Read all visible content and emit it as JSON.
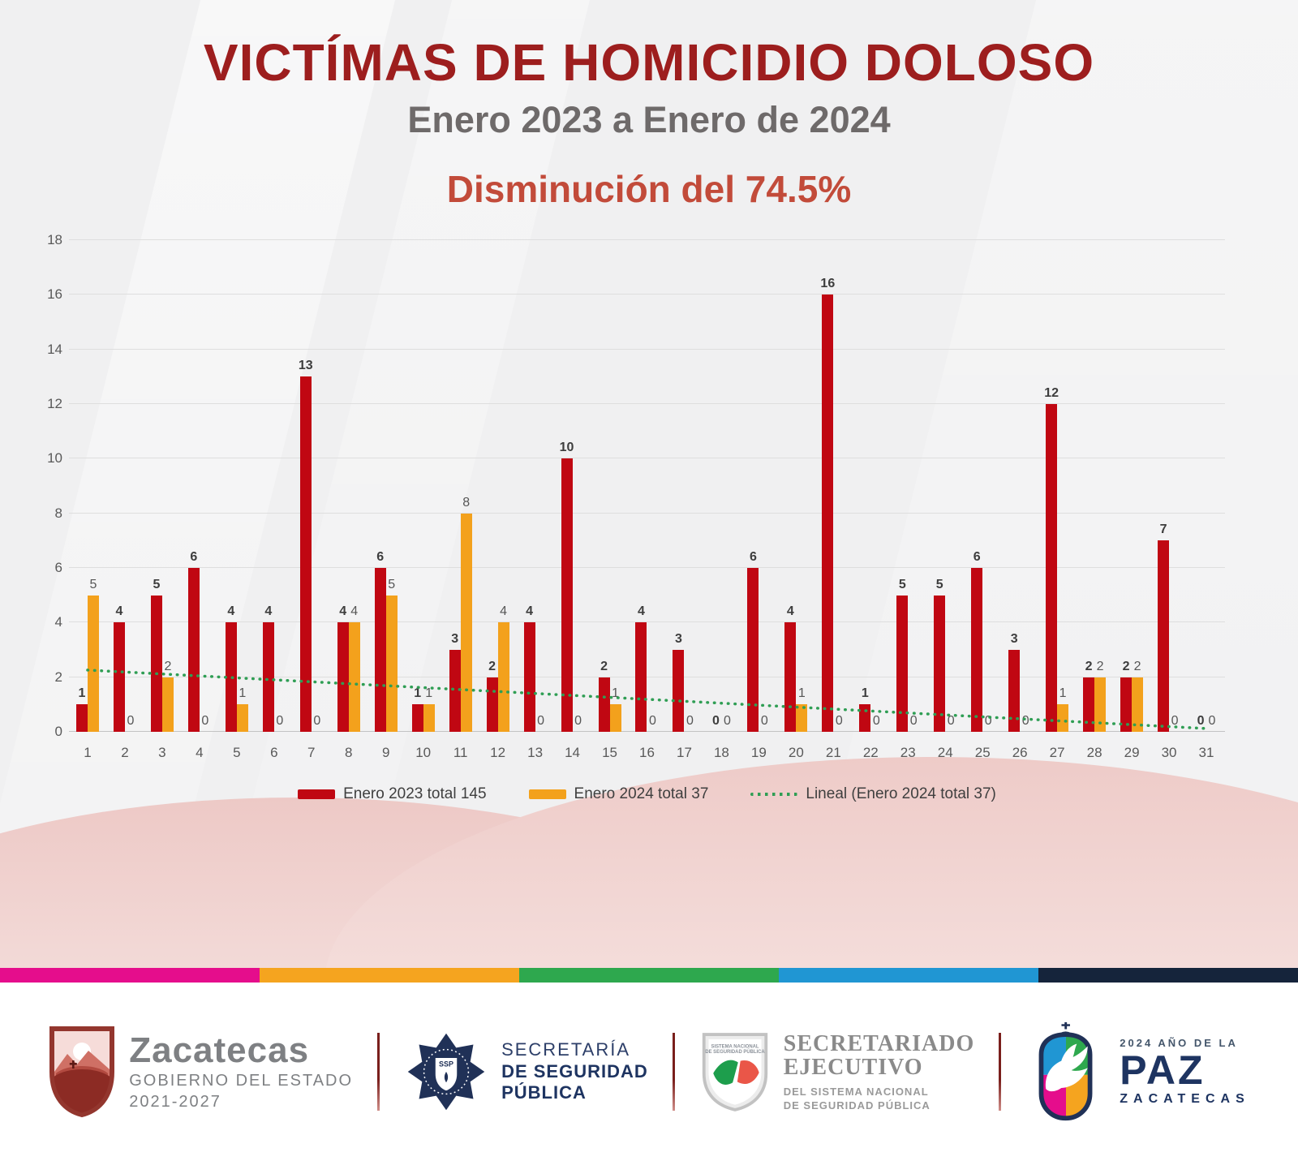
{
  "header": {
    "title": "VICTÍMAS DE HOMICIDIO DOLOSO",
    "subtitle": "Enero 2023 a Enero de 2024",
    "highlight": "Disminución del 74.5%"
  },
  "chart_data": {
    "type": "bar",
    "categories": [
      1,
      2,
      3,
      4,
      5,
      6,
      7,
      8,
      9,
      10,
      11,
      12,
      13,
      14,
      15,
      16,
      17,
      18,
      19,
      20,
      21,
      22,
      23,
      24,
      25,
      26,
      27,
      28,
      29,
      30,
      31
    ],
    "series": [
      {
        "name": "Enero 2023 total 145",
        "color": "#c00712",
        "values": [
          1,
          4,
          5,
          6,
          4,
          4,
          13,
          4,
          6,
          1,
          3,
          2,
          4,
          10,
          2,
          4,
          3,
          0,
          6,
          4,
          16,
          1,
          5,
          5,
          6,
          3,
          12,
          2,
          2,
          7,
          0
        ]
      },
      {
        "name": "Enero 2024 total 37",
        "color": "#f3a11c",
        "values": [
          5,
          0,
          2,
          0,
          1,
          0,
          0,
          4,
          5,
          1,
          8,
          4,
          0,
          0,
          1,
          0,
          0,
          0,
          0,
          1,
          0,
          0,
          0,
          0,
          0,
          0,
          1,
          2,
          2,
          0,
          0
        ]
      }
    ],
    "trendline": {
      "name": "Lineal (Enero 2024 total 37)",
      "color": "#2f9e54",
      "start_value": 2.26,
      "end_value": 0.12
    },
    "title": "VICTÍMAS DE HOMICIDIO DOLOSO",
    "xlabel": "",
    "ylabel": "",
    "ylim": [
      0,
      18
    ],
    "ytick_step": 2,
    "grid": true,
    "legend_position": "bottom"
  },
  "footer": {
    "stripe_colors": [
      "#e50d8c",
      "#f5a41f",
      "#2ea84e",
      "#2096d3",
      "#15243b"
    ],
    "logos": {
      "zacatecas": {
        "name": "Zacatecas",
        "line1": "GOBIERNO DEL ESTADO",
        "line2": "2021-2027"
      },
      "ssp": {
        "badge": "SSP",
        "line1": "SECRETARÍA",
        "line2": "DE SEGURIDAD",
        "line3": "PÚBLICA"
      },
      "secretariado": {
        "line1": "SECRETARIADO",
        "line2": "EJECUTIVO",
        "line3": "DEL SISTEMA NACIONAL",
        "line4": "DE SEGURIDAD PÚBLICA",
        "shield_caption_1": "SISTEMA NACIONAL",
        "shield_caption_2": "DE SEGURIDAD PÚBLICA"
      },
      "paz": {
        "line1": "2024 AÑO DE LA",
        "line2": "PAZ",
        "line3": "ZACATECAS"
      }
    }
  }
}
